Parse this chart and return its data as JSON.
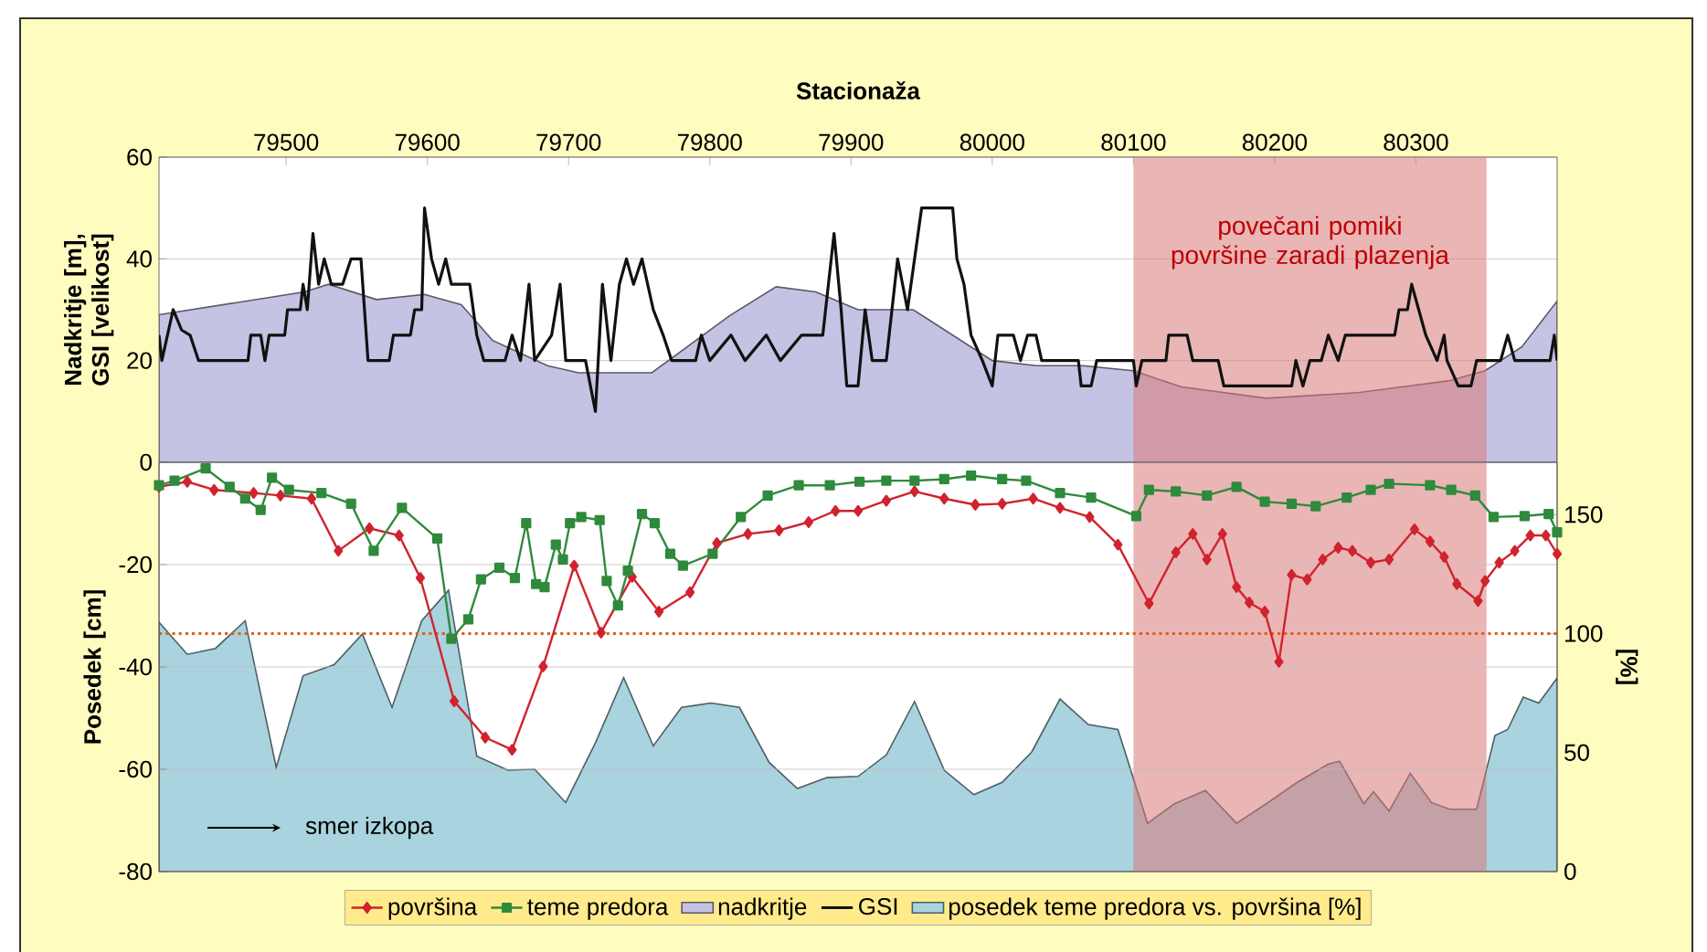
{
  "chart_data": [
    {
      "type": "line",
      "xlabel": "Stacionaža",
      "ylabel": "Nadkritje [m], GSI [velikost]",
      "xlim": [
        79410,
        80400
      ],
      "xticks": [
        79500,
        79600,
        79700,
        79800,
        79900,
        80000,
        80100,
        80200,
        80300
      ],
      "ylim": [
        0,
        60
      ],
      "yticks": [
        0,
        20,
        40,
        60
      ],
      "grid": "y",
      "legend": "bottom",
      "bands": [
        {
          "axis": "x",
          "from": 80100,
          "to": 80350,
          "label": "povečani pomiki površine zaradi plazenja",
          "color": "#d87878"
        }
      ],
      "series": [
        {
          "name": "nadkritje",
          "type": "area",
          "color": "#c5c3e3",
          "x": [
            79410,
            79513,
            79530,
            79564,
            79598,
            79624,
            79646,
            79685,
            79707,
            79759,
            79784,
            79814,
            79847,
            79875,
            79905,
            79944,
            80000,
            80031,
            80064,
            80100,
            80134,
            80194,
            80259,
            80323,
            80349,
            80375,
            80400
          ],
          "values": [
            29,
            33.5,
            35,
            32,
            33,
            31,
            24,
            19,
            17.6,
            17.6,
            22.7,
            28.8,
            34.5,
            33.5,
            30,
            30,
            20,
            19,
            19,
            18,
            14.8,
            12.6,
            13.7,
            16,
            18,
            22.7,
            31.7
          ]
        },
        {
          "name": "GSI",
          "color": "#111111",
          "x": [
            79410,
            79412,
            79420,
            79426,
            79432,
            79438,
            79473,
            79475,
            79482,
            79485,
            79488,
            79499,
            79501,
            79510,
            79512,
            79515,
            79519,
            79523,
            79527,
            79532,
            79540,
            79546,
            79553,
            79558,
            79573,
            79576,
            79588,
            79591,
            79596,
            79598,
            79603,
            79608,
            79613,
            79617,
            79630,
            79635,
            79640,
            79655,
            79660,
            79666,
            79672,
            79676,
            79688,
            79694,
            79698,
            79712,
            79719,
            79724,
            79730,
            79736,
            79741,
            79746,
            79752,
            79760,
            79767,
            79773,
            79790,
            79794,
            79800,
            79815,
            79825,
            79840,
            79850,
            79865,
            79880,
            79888,
            79893,
            79897,
            79905,
            79910,
            79915,
            79925,
            79933,
            79940,
            79950,
            79972,
            79975,
            79980,
            79985,
            79993,
            80000,
            80004,
            80015,
            80020,
            80025,
            80031,
            80035,
            80061,
            80063,
            80070,
            80074,
            80100,
            80102,
            80106,
            80123,
            80125,
            80138,
            80142,
            80160,
            80164,
            80212,
            80215,
            80220,
            80225,
            80233,
            80238,
            80245,
            80250,
            80285,
            80288,
            80294,
            80297,
            80302,
            80307,
            80315,
            80320,
            80322,
            80330,
            80339,
            80343,
            80360,
            80365,
            80370,
            80395,
            80398,
            80400
          ],
          "values": [
            25,
            20,
            30,
            26,
            25,
            20,
            20,
            25,
            25,
            20,
            25,
            25,
            30,
            30,
            35,
            30,
            45,
            35,
            40,
            35,
            35,
            40,
            40,
            20,
            20,
            25,
            25,
            30,
            30,
            50,
            40,
            35,
            40,
            35,
            35,
            25,
            20,
            20,
            25,
            20,
            35,
            20,
            25,
            35,
            20,
            20,
            10,
            35,
            20,
            35,
            40,
            35,
            40,
            30,
            25,
            20,
            20,
            25,
            20,
            25,
            20,
            25,
            20,
            25,
            25,
            45,
            30,
            15,
            15,
            30,
            20,
            20,
            40,
            30,
            50,
            50,
            40,
            35,
            25,
            20,
            15,
            25,
            25,
            20,
            25,
            25,
            20,
            20,
            15,
            15,
            20,
            20,
            15,
            20,
            20,
            25,
            25,
            20,
            20,
            15,
            15,
            20,
            15,
            20,
            20,
            25,
            20,
            25,
            25,
            30,
            30,
            35,
            30,
            25,
            20,
            25,
            20,
            15,
            15,
            20,
            20,
            25,
            20,
            20,
            25,
            20
          ]
        }
      ]
    },
    {
      "type": "line",
      "ylabel": "Posedek [cm]",
      "y2label": "[%]",
      "xlim": [
        79410,
        80400
      ],
      "ylim": [
        -80,
        0
      ],
      "yticks": [
        -80,
        -60,
        -40,
        -20,
        {
          "value": 0,
          "label": null
        }
      ],
      "y2lim": [
        0,
        172
      ],
      "y2ticks": [
        0,
        50,
        100,
        150
      ],
      "grid": "y",
      "legend": "bottom",
      "tick_labels": "y",
      "annotations": [
        "smer izkopa"
      ],
      "bands": [
        {
          "axis": "x",
          "from": 80100,
          "to": 80350,
          "color": "#d87878"
        }
      ],
      "ref_lines": [
        {
          "axis": "y2",
          "value": 100,
          "color": "#e0601a",
          "line_style": "dotted"
        }
      ],
      "series": [
        {
          "name": "površina",
          "marker": "diamond",
          "color": "#d0232e",
          "x": [
            79410,
            79430,
            79449,
            79477,
            79496,
            79518,
            79537,
            79559,
            79580,
            79595,
            79619,
            79641,
            79660,
            79682,
            79704,
            79723,
            79745,
            79764,
            79786,
            79805,
            79827,
            79849,
            79870,
            79889,
            79905,
            79925,
            79945,
            79966,
            79988,
            80007,
            80029,
            80048,
            80069,
            80089,
            80111,
            80130,
            80142,
            80152,
            80163,
            80173,
            80182,
            80193,
            80203,
            80212,
            80223,
            80234,
            80245,
            80255,
            80268,
            80281,
            80299,
            80310,
            80320,
            80329,
            80344,
            80349,
            80359,
            80370,
            80381,
            80392,
            80400
          ],
          "values": [
            -4.8,
            -3.8,
            -5.4,
            -6,
            -6.5,
            -7.1,
            -17.3,
            -12.9,
            -14.3,
            -22.6,
            -46.7,
            -53.8,
            -56.2,
            -39.9,
            -20.2,
            -33.3,
            -22.4,
            -29.2,
            -25.4,
            -15.8,
            -14,
            -13.3,
            -11.7,
            -9.5,
            -9.5,
            -7.5,
            -5.7,
            -7.1,
            -8.3,
            -8.1,
            -7.1,
            -8.9,
            -10.7,
            -16.1,
            -27.6,
            -17.6,
            -14,
            -19,
            -14,
            -24.4,
            -27.4,
            -29.2,
            -39,
            -22,
            -22.9,
            -19,
            -16.7,
            -17.3,
            -19.6,
            -19,
            -13.1,
            -15.5,
            -18.5,
            -23.8,
            -27.1,
            -23.2,
            -19.6,
            -17.3,
            -14.3,
            -14.3,
            -17.9
          ]
        },
        {
          "name": "teme predora",
          "marker": "square",
          "color": "#2f8a3c",
          "x": [
            79410,
            79421,
            79443,
            79460,
            79471,
            79482,
            79490,
            79502,
            79525,
            79546,
            79562,
            79582,
            79607,
            79617,
            79629,
            79638,
            79651,
            79662,
            79670,
            79677,
            79683,
            79691,
            79696,
            79701,
            79709,
            79722,
            79727,
            79735,
            79742,
            79752,
            79761,
            79772,
            79781,
            79802,
            79822,
            79841,
            79863,
            79885,
            79906,
            79925,
            79945,
            79966,
            79985,
            80007,
            80024,
            80048,
            80070,
            80102,
            80111,
            80130,
            80152,
            80173,
            80193,
            80212,
            80229,
            80251,
            80268,
            80281,
            80310,
            80325,
            80342,
            80355,
            80377,
            80394,
            80400
          ],
          "values": [
            -4.5,
            -3.6,
            -1.2,
            -4.8,
            -7.1,
            -9.3,
            -3,
            -5.4,
            -6,
            -8.1,
            -17.3,
            -8.9,
            -14.9,
            -34.5,
            -30.7,
            -22.9,
            -20.6,
            -22.6,
            -11.9,
            -23.8,
            -24.4,
            -16.1,
            -19,
            -11.9,
            -10.7,
            -11.3,
            -23.2,
            -28,
            -21.2,
            -10.1,
            -11.9,
            -17.9,
            -20.2,
            -17.9,
            -10.7,
            -6.5,
            -4.5,
            -4.5,
            -3.8,
            -3.6,
            -3.6,
            -3.3,
            -2.6,
            -3.3,
            -3.6,
            -6,
            -6.9,
            -10.5,
            -5.4,
            -5.7,
            -6.5,
            -4.8,
            -7.7,
            -8.1,
            -8.6,
            -6.9,
            -5.4,
            -4.2,
            -4.5,
            -5.4,
            -6.5,
            -10.7,
            -10.5,
            -10.1,
            -13.7
          ]
        },
        {
          "name": "posedek teme predora vs. površina [%]",
          "type": "area",
          "axis": "y2",
          "color": "#a9d3de",
          "x": [
            79410,
            79430,
            79450,
            79471,
            79493,
            79512,
            79534,
            79554,
            79575,
            79596,
            79615,
            79635,
            79657,
            79676,
            79698,
            79719,
            79739,
            79760,
            79780,
            79801,
            79821,
            79842,
            79862,
            79883,
            79905,
            79925,
            79945,
            79966,
            79987,
            80007,
            80028,
            80048,
            80068,
            80089,
            80110,
            80129,
            80151,
            80173,
            80194,
            80216,
            80238,
            80246,
            80263,
            80270,
            80281,
            80296,
            80311,
            80324,
            80343,
            80356,
            80365,
            80376,
            80387,
            80400
          ],
          "values": [
            104.8,
            91.3,
            93.8,
            105.4,
            43.8,
            82.3,
            86.9,
            99.8,
            69,
            105.4,
            118.2,
            48.5,
            42.6,
            43,
            29,
            54.1,
            81.5,
            52.8,
            69,
            70.8,
            69,
            45.9,
            34.9,
            39.5,
            40,
            49,
            71.5,
            42.6,
            32.3,
            37.5,
            50.3,
            72.5,
            61.8,
            59.7,
            20.3,
            28.5,
            34.1,
            20.3,
            28.5,
            37.5,
            45.2,
            46.4,
            28.5,
            33.6,
            25.4,
            41.3,
            29,
            26.2,
            26.2,
            57.2,
            59.7,
            73.3,
            70.8,
            81.3
          ]
        }
      ]
    }
  ]
}
